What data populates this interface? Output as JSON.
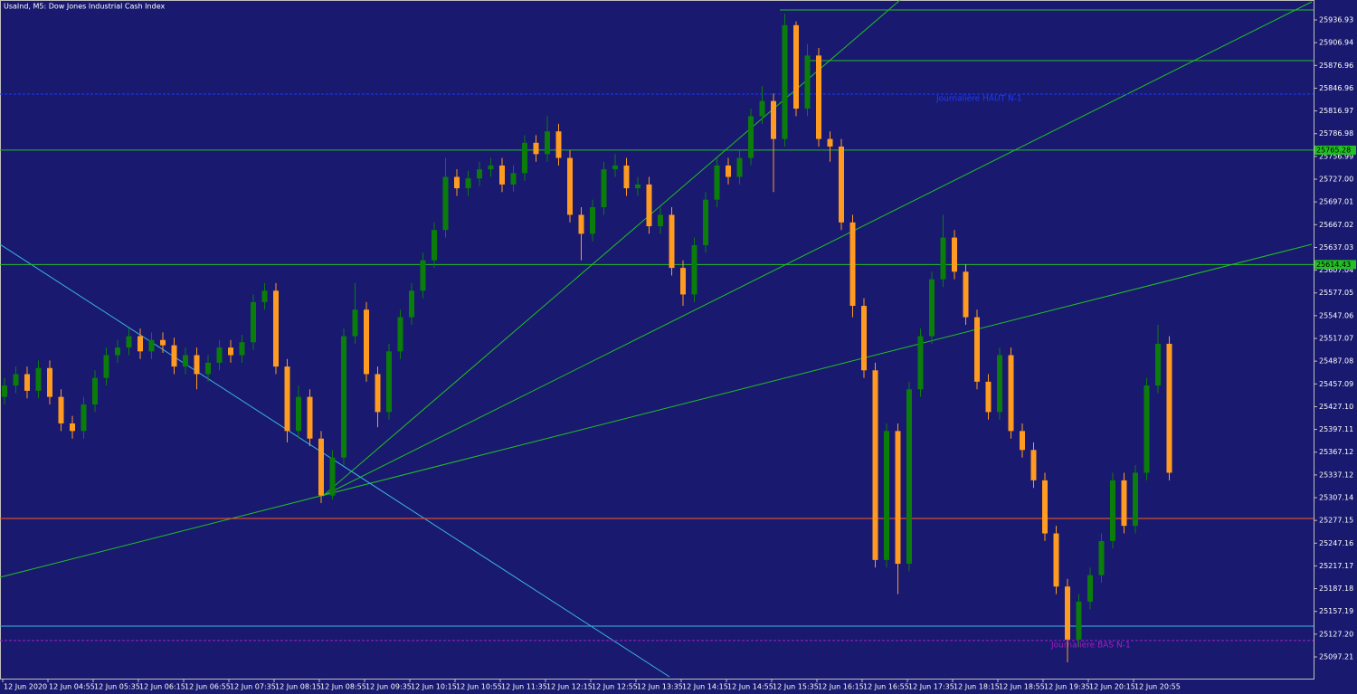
{
  "chart_data": {
    "type": "candlestick",
    "title": "UsaInd, M5:  Dow Jones Industrial Cash Index",
    "categories": [
      "12 Jun 2020",
      null,
      null,
      null,
      "12 Jun 04:55",
      null,
      null,
      null,
      "12 Jun 05:35",
      null,
      null,
      null,
      "12 Jun 06:15",
      null,
      null,
      null,
      "12 Jun 06:55",
      null,
      null,
      null,
      "12 Jun 07:35",
      null,
      null,
      null,
      "12 Jun 08:15",
      null,
      null,
      null,
      "12 Jun 08:55",
      null,
      null,
      null,
      "12 Jun 09:35",
      null,
      null,
      null,
      "12 Jun 10:15",
      null,
      null,
      null,
      "12 Jun 10:55",
      null,
      null,
      null,
      "12 Jun 11:35",
      null,
      null,
      null,
      "12 Jun 12:15",
      null,
      null,
      null,
      "12 Jun 12:55",
      null,
      null,
      null,
      "12 Jun 13:35",
      null,
      null,
      null,
      "12 Jun 14:15",
      null,
      null,
      null,
      "12 Jun 14:55",
      null,
      null,
      null,
      "12 Jun 15:35",
      null,
      null,
      null,
      "12 Jun 16:15",
      null,
      null,
      null,
      "12 Jun 16:55",
      null,
      null,
      null,
      "12 Jun 17:35",
      null,
      null,
      null,
      "12 Jun 18:15",
      null,
      null,
      null,
      "12 Jun 18:55",
      null,
      null,
      null,
      "12 Jun 19:35",
      null,
      null,
      null,
      "12 Jun 20:15",
      null,
      null,
      null,
      "12 Jun 20:55",
      null,
      null,
      null
    ],
    "open": [
      25440,
      25455,
      25470,
      25448,
      25478,
      25440,
      25405,
      25395,
      25430,
      25465,
      25495,
      25505,
      25520,
      25500,
      25515,
      25508,
      25480,
      25495,
      25470,
      25485,
      25505,
      25495,
      25512,
      25565,
      25580,
      25480,
      25395,
      25440,
      25385,
      25310,
      25360,
      25520,
      25555,
      25470,
      25420,
      25500,
      25545,
      25580,
      25620,
      25660,
      25730,
      25715,
      25728,
      25740,
      25745,
      25720,
      25735,
      25775,
      25760,
      25790,
      25755,
      25680,
      25655,
      25690,
      25740,
      25745,
      25715,
      25720,
      25665,
      25680,
      25610,
      25575,
      25640,
      25700,
      25745,
      25730,
      25755,
      25810,
      25830,
      25780,
      25930,
      25820,
      25890,
      25780,
      25770,
      25670,
      25560,
      25475,
      25225,
      25395,
      25220,
      25450,
      25520,
      25595,
      25650,
      25605,
      25545,
      25460,
      25420,
      25495,
      25395,
      25370,
      25330,
      25260,
      25190,
      25120,
      25170,
      25205,
      25250,
      25330,
      25270,
      25340,
      25455,
      25510
    ],
    "high": [
      25465,
      25480,
      25480,
      25488,
      25488,
      25450,
      25415,
      25440,
      25475,
      25505,
      25515,
      25530,
      25530,
      25525,
      25525,
      25518,
      25505,
      25505,
      25495,
      25515,
      25515,
      25522,
      25575,
      25590,
      25590,
      25490,
      25455,
      25450,
      25395,
      25370,
      25530,
      25590,
      25565,
      25480,
      25510,
      25555,
      25590,
      25630,
      25670,
      25755,
      25740,
      25738,
      25750,
      25755,
      25755,
      25745,
      25785,
      25785,
      25810,
      25800,
      25765,
      25690,
      25700,
      25750,
      25760,
      25755,
      25730,
      25730,
      25690,
      25690,
      25620,
      25650,
      25710,
      25755,
      25755,
      25765,
      25820,
      25850,
      25840,
      25945,
      25935,
      25905,
      25900,
      25790,
      25780,
      25680,
      25570,
      25485,
      25405,
      25405,
      25460,
      25530,
      25605,
      25680,
      25660,
      25615,
      25555,
      25470,
      25505,
      25505,
      25405,
      25380,
      25340,
      25270,
      25200,
      25180,
      25215,
      25260,
      25340,
      25340,
      25350,
      25465,
      25535,
      25520
    ],
    "low": [
      25430,
      25445,
      25438,
      25438,
      25430,
      25395,
      25385,
      25385,
      25420,
      25455,
      25485,
      25495,
      25490,
      25490,
      25498,
      25470,
      25470,
      25450,
      25460,
      25475,
      25485,
      25485,
      25502,
      25555,
      25470,
      25380,
      25385,
      25375,
      25300,
      25305,
      25350,
      25510,
      25460,
      25400,
      25410,
      25490,
      25535,
      25570,
      25610,
      25650,
      25705,
      25705,
      25718,
      25730,
      25710,
      25710,
      25725,
      25750,
      25750,
      25745,
      25670,
      25620,
      25645,
      25680,
      25730,
      25705,
      25705,
      25655,
      25655,
      25600,
      25560,
      25565,
      25630,
      25690,
      25720,
      25720,
      25745,
      25800,
      25710,
      25770,
      25810,
      25810,
      25770,
      25750,
      25660,
      25545,
      25465,
      25215,
      25215,
      25180,
      25210,
      25440,
      25510,
      25585,
      25595,
      25535,
      25450,
      25410,
      25410,
      25385,
      25360,
      25320,
      25250,
      25180,
      25090,
      25110,
      25160,
      25195,
      25240,
      25260,
      25260,
      25330,
      25445,
      25330
    ],
    "close": [
      25455,
      25470,
      25448,
      25478,
      25440,
      25405,
      25395,
      25430,
      25465,
      25495,
      25505,
      25520,
      25500,
      25515,
      25508,
      25480,
      25495,
      25470,
      25485,
      25505,
      25495,
      25512,
      25565,
      25580,
      25480,
      25395,
      25440,
      25385,
      25310,
      25360,
      25520,
      25555,
      25470,
      25420,
      25500,
      25545,
      25580,
      25620,
      25660,
      25730,
      25715,
      25728,
      25740,
      25745,
      25720,
      25735,
      25775,
      25760,
      25790,
      25755,
      25680,
      25655,
      25690,
      25740,
      25745,
      25715,
      25720,
      25665,
      25680,
      25610,
      25575,
      25640,
      25700,
      25745,
      25730,
      25755,
      25810,
      25830,
      25780,
      25930,
      25820,
      25890,
      25780,
      25770,
      25670,
      25560,
      25475,
      25225,
      25395,
      25220,
      25450,
      25520,
      25595,
      25650,
      25605,
      25545,
      25460,
      25420,
      25495,
      25395,
      25370,
      25330,
      25260,
      25190,
      25120,
      25170,
      25205,
      25250,
      25330,
      25270,
      25340,
      25455,
      25510,
      25340
    ],
    "up_color": "#0b7d0b",
    "down_color": "#ff9b21",
    "ylim": [
      25068.6,
      25963.2
    ],
    "yticks": [
      25936.93,
      25906.94,
      25876.96,
      25846.96,
      25816.97,
      25786.98,
      25756.99,
      {
        "value": 25727.0,
        "label": "25727.00"
      },
      25697.01,
      25667.02,
      25637.03,
      25607.04,
      25577.05,
      25547.06,
      25517.07,
      25487.08,
      25457.09,
      {
        "value": 25427.1,
        "label": "25427.10"
      },
      25397.11,
      25367.12,
      25337.12,
      25307.14,
      25277.15,
      25247.16,
      25217.17,
      25187.18,
      25157.19,
      {
        "value": 25127.2,
        "label": "25127.20"
      },
      25097.21
    ],
    "levels": [
      {
        "value": 25765.28,
        "color": "#22c022",
        "boxed": true
      },
      {
        "value": 25614.43,
        "color": "#22c022",
        "boxed": true
      },
      {
        "value": 25279.7,
        "color": "#ff5a1a"
      },
      {
        "value": 25137.8,
        "color": "#3ab8e0"
      },
      {
        "value": 25839.1,
        "color": "#1a3cff",
        "dashed": true,
        "text": "Journalière HAUT N-1"
      },
      {
        "value": 25118.8,
        "color": "#a020c0",
        "dashed": true,
        "text": "Journalière BAS N-1"
      }
    ]
  }
}
